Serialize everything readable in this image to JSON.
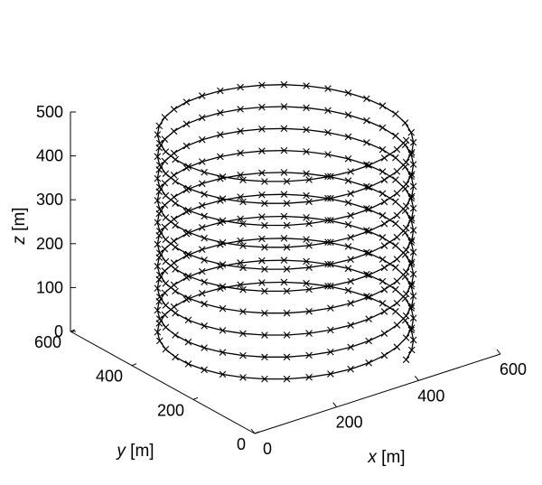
{
  "chart_data": {
    "type": "scatter3d-line",
    "title": "",
    "xlabel": {
      "var": "x",
      "unit": " [m]"
    },
    "ylabel": {
      "var": "y",
      "unit": " [m]"
    },
    "zlabel": {
      "var": "z",
      "unit": " [m]"
    },
    "xlim": [
      0,
      600
    ],
    "ylim": [
      0,
      600
    ],
    "zlim": [
      0,
      500
    ],
    "xticks": [
      "0",
      "200",
      "400",
      "600"
    ],
    "yticks": [
      "0",
      "200",
      "400",
      "600"
    ],
    "zticks": [
      "0",
      "100",
      "200",
      "300",
      "400",
      "500"
    ],
    "grid": false,
    "series": [
      {
        "marker": "x",
        "line_color": "#000000",
        "marker_color": "#000000",
        "shape": "helix",
        "center": [
          300,
          300
        ],
        "radius": 250,
        "z_start": 0,
        "z_end": 500,
        "turns": 10,
        "points_per_turn": 36
      }
    ]
  }
}
